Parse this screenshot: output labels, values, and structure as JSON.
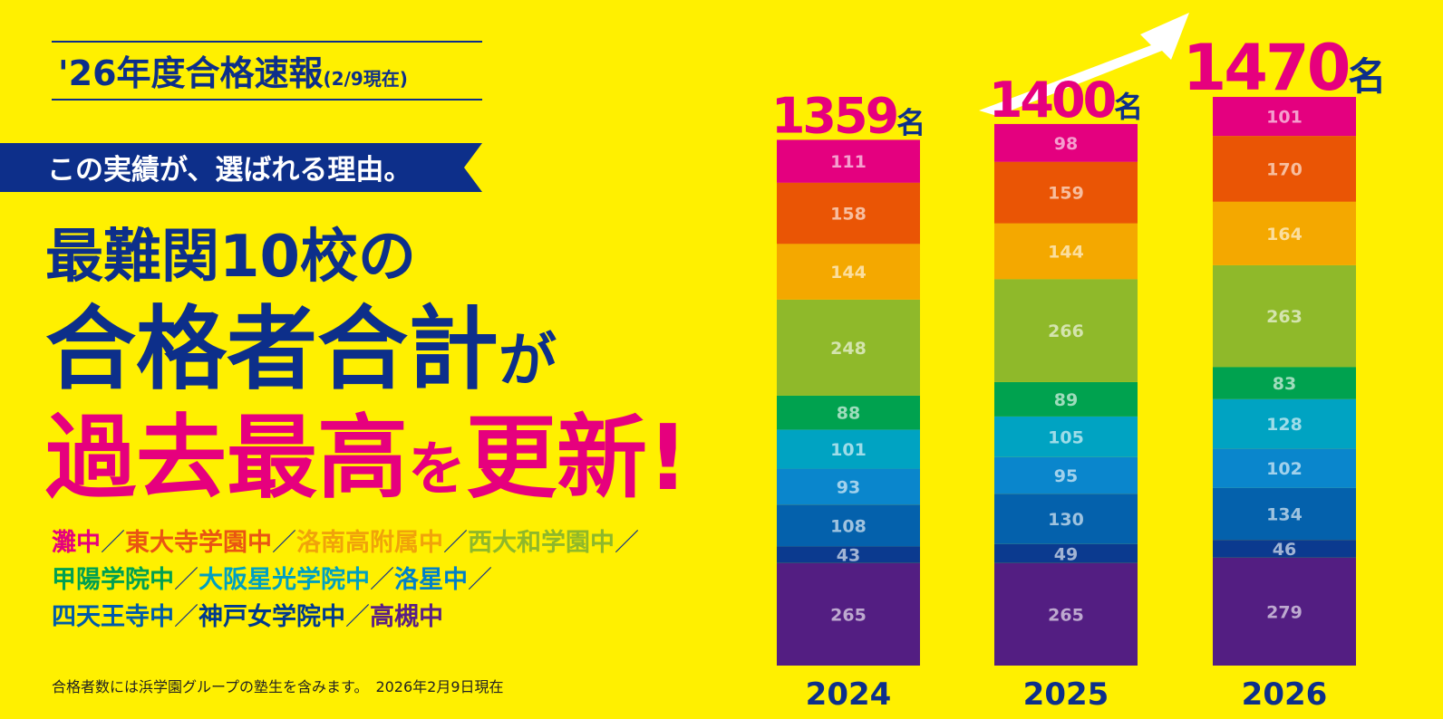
{
  "header": {
    "title": "'26年度合格速報",
    "date_note": "(2/9現在)"
  },
  "ribbon": "この実績が、選ばれる理由。",
  "headline": {
    "line1": "最難関10校の",
    "line2": [
      "合格者合計",
      "が"
    ],
    "line3": [
      "過去最高",
      "を",
      "更新!"
    ]
  },
  "schools": {
    "separator": "／",
    "rows": [
      [
        {
          "name": "灘中",
          "color": "#e6007e"
        },
        {
          "name": "東大寺学園中",
          "color": "#e95513"
        },
        {
          "name": "洛南高附属中",
          "color": "#f0a30a"
        },
        {
          "name": "西大和学園中",
          "color": "#8fb82a"
        }
      ],
      [
        {
          "name": "甲陽学院中",
          "color": "#00a051"
        },
        {
          "name": "大阪星光学院中",
          "color": "#00a0c0"
        },
        {
          "name": "洛星中",
          "color": "#0080c8"
        }
      ],
      [
        {
          "name": "四天王寺中",
          "color": "#005ba8"
        },
        {
          "name": "神戸女学院中",
          "color": "#003a8c"
        },
        {
          "name": "高槻中",
          "color": "#5b1f84"
        }
      ]
    ]
  },
  "footnote": "合格者数には浜学園グループの塾生を含みます。　2026年2月9日現在",
  "chart_data": {
    "type": "stacked_bar",
    "categories": [
      "2024",
      "2025",
      "2026"
    ],
    "totals": [
      1359,
      1400,
      1470
    ],
    "total_unit": "名",
    "series": [
      {
        "color": "#531e82",
        "values": [
          265,
          265,
          279
        ]
      },
      {
        "color": "#0b3a8f",
        "values": [
          43,
          49,
          46
        ]
      },
      {
        "color": "#0461ac",
        "values": [
          108,
          130,
          134
        ]
      },
      {
        "color": "#0a86cc",
        "values": [
          93,
          95,
          102
        ]
      },
      {
        "color": "#00a3c2",
        "values": [
          101,
          105,
          128
        ]
      },
      {
        "color": "#00a24f",
        "values": [
          88,
          89,
          83
        ]
      },
      {
        "color": "#8fb92a",
        "values": [
          248,
          266,
          263
        ]
      },
      {
        "color": "#f4a800",
        "values": [
          144,
          144,
          164
        ]
      },
      {
        "color": "#ea5505",
        "values": [
          158,
          159,
          170
        ]
      },
      {
        "color": "#e4007f",
        "values": [
          111,
          98,
          101
        ]
      }
    ]
  }
}
